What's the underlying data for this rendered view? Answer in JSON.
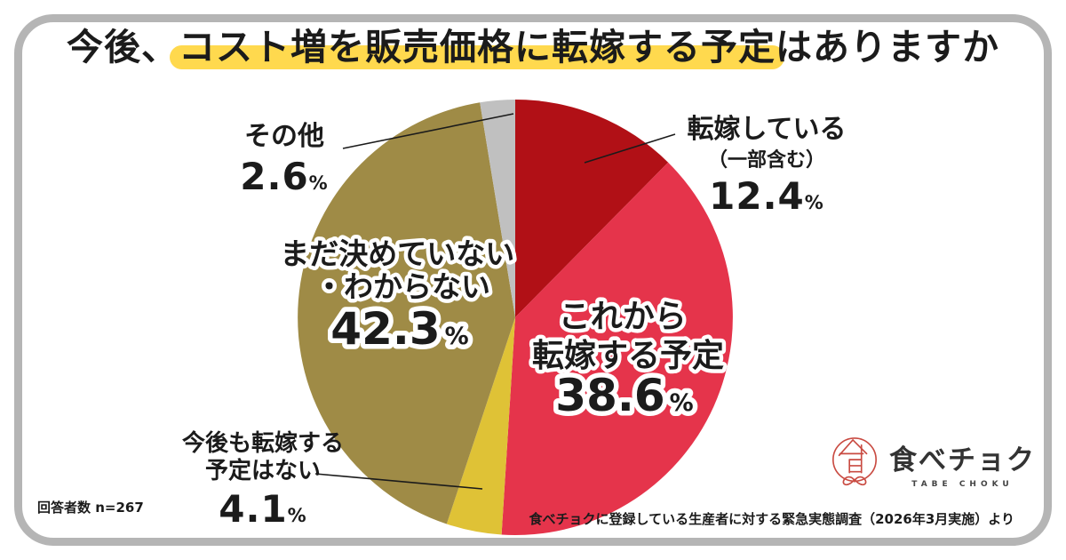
{
  "title": {
    "prefix": "今後、",
    "highlight": "コスト増を販売価格に転嫁する予定",
    "suffix": "はありますか",
    "highlight_color": "#FFD94E"
  },
  "chart_data": {
    "type": "pie",
    "title": "今後、コスト増を販売価格に転嫁する予定はありますか",
    "unit": "%",
    "start_angle": "12 o'clock",
    "direction": "clockwise",
    "segments": [
      {
        "label": "転嫁している（一部含む）",
        "value": 12.4,
        "color": "#B11016"
      },
      {
        "label": "これから転嫁する予定",
        "value": 38.6,
        "color": "#E5344B"
      },
      {
        "label": "今後も転嫁する予定はない",
        "value": 4.1,
        "color": "#DFC236"
      },
      {
        "label": "まだ決めていない・わからない",
        "value": 42.3,
        "color": "#9F8B46"
      },
      {
        "label": "その他",
        "value": 2.6,
        "color": "#C0C0C0"
      }
    ]
  },
  "labels": {
    "tenka": {
      "line1": "転嫁している",
      "line2": "（一部含む）",
      "value": "12.4",
      "unit": "%"
    },
    "korekara": {
      "line1": "これから",
      "line2": "転嫁する予定",
      "value": "38.6",
      "unit": "%"
    },
    "kongo": {
      "line1": "今後も転嫁する",
      "line2": "予定はない",
      "value": "4.1",
      "unit": "%"
    },
    "mada": {
      "line1": "まだ決めていない",
      "line2": "・わからない",
      "value": "42.3",
      "unit": "%"
    },
    "sonota": {
      "line1": "その他",
      "value": "2.6",
      "unit": "%"
    }
  },
  "footer": {
    "respondents": "回答者数 n=267",
    "source": "食べチョクに登録している生産者に対する緊急実態調査（2026年3月実施）より"
  },
  "logo": {
    "name": "食べチョク",
    "subtext": "TABE CHOKU",
    "color": "#C94B42"
  }
}
